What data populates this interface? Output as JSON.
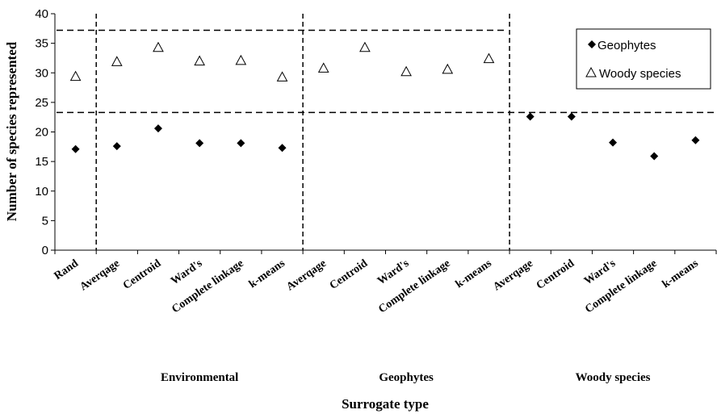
{
  "chart_data": {
    "type": "scatter",
    "title": "",
    "xlabel": "Surrogate type",
    "ylabel": "Number of species represented",
    "ylim": [
      0,
      40
    ],
    "yticks": [
      0,
      5,
      10,
      15,
      20,
      25,
      30,
      35,
      40
    ],
    "grid": false,
    "legend_position": "top-right",
    "categories": [
      "Rand",
      "Averqage",
      "Centroid",
      "Ward's",
      "Complete linkage",
      "k-means",
      "Averqage",
      "Centroid",
      "Ward's",
      "Complete linkage",
      "k-means",
      "Averqage",
      "Centroid",
      "Ward's",
      "Complete linkage",
      "k-means"
    ],
    "groups": [
      {
        "label": "Environmental",
        "start": 1,
        "end": 5
      },
      {
        "label": "Geophytes",
        "start": 6,
        "end": 10
      },
      {
        "label": "Woody species",
        "start": 11,
        "end": 15
      }
    ],
    "series": [
      {
        "name": "Geophytes",
        "marker": "diamond-filled",
        "color": "#000000",
        "values": [
          17.1,
          17.6,
          20.6,
          18.1,
          18.1,
          17.3,
          null,
          null,
          null,
          null,
          null,
          22.6,
          22.6,
          18.2,
          15.9,
          18.6
        ]
      },
      {
        "name": "Woody species",
        "marker": "triangle-open",
        "color": "#000000",
        "values": [
          29.4,
          31.9,
          34.3,
          32.0,
          32.1,
          29.3,
          30.8,
          34.3,
          30.2,
          30.6,
          32.4,
          null,
          null,
          null,
          null,
          null
        ]
      }
    ],
    "reference_lines": [
      {
        "y": 37.2,
        "from_category": 0,
        "to_category": 10
      },
      {
        "y": 23.3,
        "from_category": 0,
        "to_category": 15
      }
    ]
  }
}
